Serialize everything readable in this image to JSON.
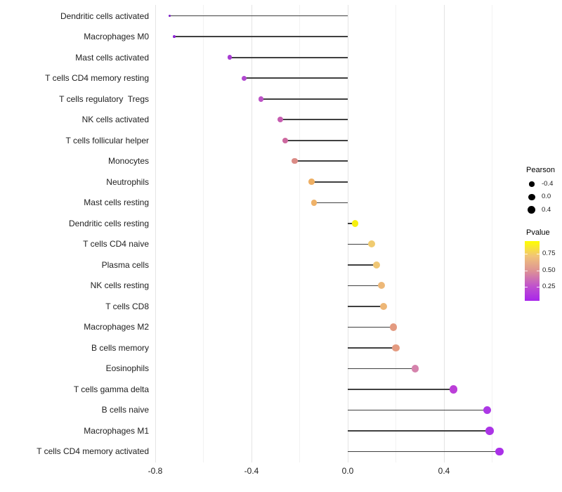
{
  "chart_data": {
    "type": "scatter",
    "variant": "lollipop",
    "title": "",
    "xlabel": "",
    "ylabel": "",
    "baseline": 0.0,
    "x_axis": {
      "range": [
        -0.809,
        0.699
      ],
      "ticks": [
        -0.8,
        -0.4,
        0.0,
        0.4
      ],
      "tick_labels": [
        "-0.8",
        "-0.4",
        "0.0",
        "0.4"
      ],
      "minor_ticks": [
        -0.6,
        -0.2,
        0.2,
        0.6
      ]
    },
    "rows": [
      {
        "label": "Dendritic cells activated",
        "pearson": -0.74,
        "pvalue": 0.04,
        "color": "#7B1FC4"
      },
      {
        "label": "Macrophages M0",
        "pearson": -0.72,
        "pvalue": 0.05,
        "color": "#8E26D6"
      },
      {
        "label": "Mast cells activated",
        "pearson": -0.49,
        "pvalue": 0.22,
        "color": "#A73BD2"
      },
      {
        "label": "T cells CD4 memory resting",
        "pearson": -0.43,
        "pvalue": 0.29,
        "color": "#B149D0"
      },
      {
        "label": "T cells regulatory  Tregs",
        "pearson": -0.36,
        "pvalue": 0.38,
        "color": "#BC53C6"
      },
      {
        "label": "NK cells activated",
        "pearson": -0.28,
        "pvalue": 0.5,
        "color": "#C65CB0"
      },
      {
        "label": "T cells follicular helper",
        "pearson": -0.26,
        "pvalue": 0.53,
        "color": "#CD689F"
      },
      {
        "label": "Monocytes",
        "pearson": -0.22,
        "pvalue": 0.6,
        "color": "#DB8B86"
      },
      {
        "label": "Neutrophils",
        "pearson": -0.15,
        "pvalue": 0.74,
        "color": "#EEAF63"
      },
      {
        "label": "Mast cells resting",
        "pearson": -0.14,
        "pvalue": 0.76,
        "color": "#EFB269"
      },
      {
        "label": "Dendritic cells resting",
        "pearson": 0.03,
        "pvalue": 0.94,
        "color": "#F6EF0F"
      },
      {
        "label": "T cells CD4 naive",
        "pearson": 0.1,
        "pvalue": 0.81,
        "color": "#F0CB70"
      },
      {
        "label": "Plasma cells",
        "pearson": 0.12,
        "pvalue": 0.78,
        "color": "#F0C775"
      },
      {
        "label": "NK cells resting",
        "pearson": 0.14,
        "pvalue": 0.73,
        "color": "#EDB878"
      },
      {
        "label": "T cells CD8",
        "pearson": 0.15,
        "pvalue": 0.72,
        "color": "#EDB676"
      },
      {
        "label": "Macrophages M2",
        "pearson": 0.19,
        "pvalue": 0.65,
        "color": "#E39A80"
      },
      {
        "label": "B cells memory",
        "pearson": 0.2,
        "pvalue": 0.64,
        "color": "#E49B81"
      },
      {
        "label": "Eosinophils",
        "pearson": 0.28,
        "pvalue": 0.5,
        "color": "#D583AC"
      },
      {
        "label": "T cells gamma delta",
        "pearson": 0.44,
        "pvalue": 0.28,
        "color": "#BB3ED8"
      },
      {
        "label": "B cells naive",
        "pearson": 0.58,
        "pvalue": 0.13,
        "color": "#AC38E6"
      },
      {
        "label": "Macrophages M1",
        "pearson": 0.59,
        "pvalue": 0.12,
        "color": "#AB34E6"
      },
      {
        "label": "T cells CD4 memory activated",
        "pearson": 0.63,
        "pvalue": 0.09,
        "color": "#AA30E8"
      }
    ],
    "legend": {
      "position": "right",
      "size": {
        "title": "Pearson",
        "entries": [
          {
            "value": -0.4,
            "label": "-0.4"
          },
          {
            "value": 0.0,
            "label": "0.0"
          },
          {
            "value": 0.4,
            "label": "0.4"
          }
        ]
      },
      "color": {
        "title": "Pvalue",
        "ticks": [
          {
            "value": 0.75,
            "label": "0.75"
          },
          {
            "value": 0.5,
            "label": "0.50"
          },
          {
            "value": 0.25,
            "label": "0.25"
          }
        ],
        "range": [
          0.04,
          0.94
        ],
        "low_color": "#A020F0",
        "high_color": "#FFFF00",
        "gradient_stops_top_to_bottom": [
          "#FFFF00",
          "#F1C478",
          "#DD9295",
          "#C053CC",
          "#A825EB"
        ]
      }
    },
    "styles": {
      "grid_major": "#E4E4E4",
      "grid_minor": "#F2F2F2",
      "stem": "#404040",
      "legend_dot": "#000000",
      "text": "#212121"
    }
  }
}
